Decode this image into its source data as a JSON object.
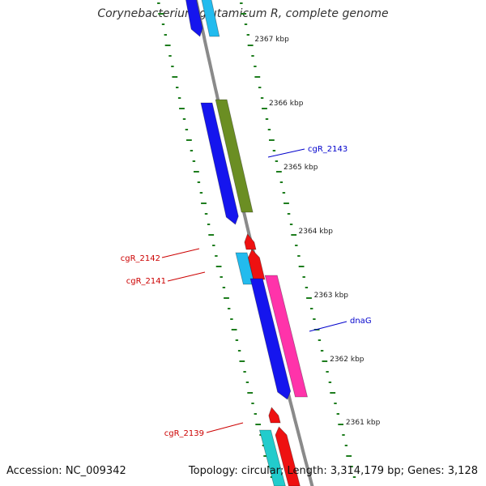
{
  "title": "Corynebacterium glutamicum R, complete genome",
  "footer": {
    "accession": "Accession: NC_009342",
    "summary": "Topology: circular; Length: 3,314,179 bp; Genes: 3,128"
  },
  "colors": {
    "backbone": "#8a8a8a",
    "tick_dots": "#1e7d1e",
    "label_blue": "#0000cc",
    "label_red": "#cc0000",
    "feature_blue": "#1515ee",
    "feature_cyan": "#22bbee",
    "feature_olive": "#6b8e23",
    "feature_pink": "#ff33aa",
    "feature_red": "#ee1111",
    "feature_teal": "#22cccc"
  },
  "scale_labels": [
    {
      "text": "2367 kbp",
      "kbp": 2367
    },
    {
      "text": "2366 kbp",
      "kbp": 2366
    },
    {
      "text": "2365 kbp",
      "kbp": 2365
    },
    {
      "text": "2364 kbp",
      "kbp": 2364
    },
    {
      "text": "2363 kbp",
      "kbp": 2363
    },
    {
      "text": "2362 kbp",
      "kbp": 2362
    },
    {
      "text": "2361 kbp",
      "kbp": 2361
    }
  ],
  "gene_labels": [
    {
      "text": "cgR_2143",
      "color": "blue",
      "side": "right"
    },
    {
      "text": "cgR_2142",
      "color": "red",
      "side": "left"
    },
    {
      "text": "cgR_2141",
      "color": "red",
      "side": "left"
    },
    {
      "text": "dnaG",
      "color": "blue",
      "side": "right"
    },
    {
      "text": "cgR_2139",
      "color": "red",
      "side": "left"
    }
  ]
}
